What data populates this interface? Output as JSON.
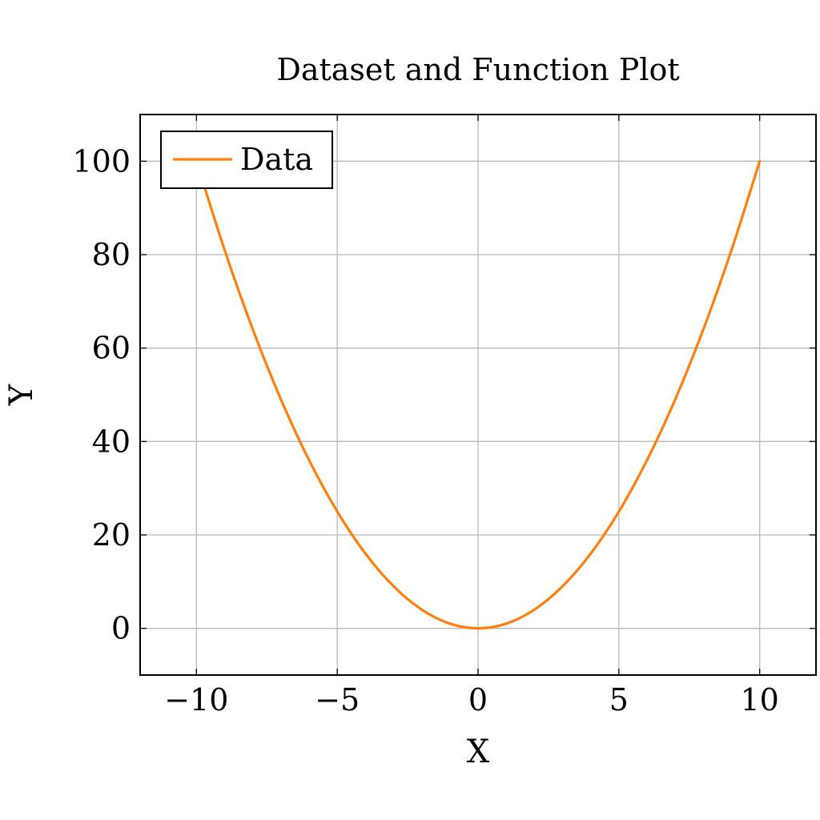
{
  "chart_data": {
    "type": "line",
    "title": "Dataset and Function Plot",
    "xlabel": "X",
    "ylabel": "Y",
    "xlim": [
      -12,
      12
    ],
    "ylim": [
      -10,
      110
    ],
    "xticks": [
      -10,
      -5,
      0,
      5,
      10
    ],
    "yticks": [
      0,
      20,
      40,
      60,
      80,
      100
    ],
    "xtick_labels": [
      "−10",
      "−5",
      "0",
      "5",
      "10"
    ],
    "ytick_labels": [
      "0",
      "20",
      "40",
      "60",
      "80",
      "100"
    ],
    "grid": true,
    "legend": {
      "position": "top-left",
      "entries": [
        "Data"
      ]
    },
    "series": [
      {
        "name": "Data",
        "color": "#ff7f0e",
        "x": [
          -10,
          -9,
          -8,
          -7,
          -6,
          -5,
          -4,
          -3,
          -2,
          -1,
          0,
          1,
          2,
          3,
          4,
          5,
          6,
          7,
          8,
          9,
          10
        ],
        "y": [
          100,
          81,
          64,
          49,
          36,
          25,
          16,
          9,
          4,
          1,
          0,
          1,
          4,
          9,
          16,
          25,
          36,
          49,
          64,
          81,
          100
        ]
      }
    ]
  }
}
